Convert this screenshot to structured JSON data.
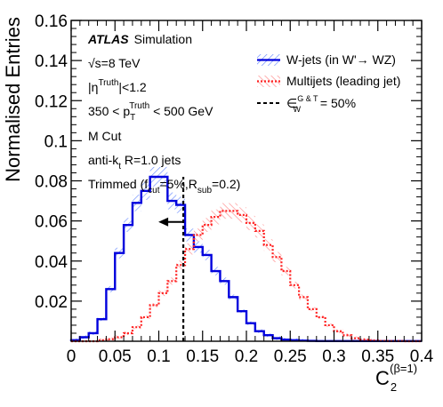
{
  "chart_data": {
    "type": "histogram",
    "title": "",
    "xlabel": "C_2^(β=1)",
    "xlabel_main": "C",
    "xlabel_sub": "2",
    "xlabel_sup": "(β=1)",
    "ylabel": "Normalised Entries",
    "xlim": [
      0,
      0.4
    ],
    "ylim": [
      0,
      0.16
    ],
    "x_ticks": [
      0,
      0.05,
      0.1,
      0.15,
      0.2,
      0.25,
      0.3,
      0.35,
      0.4
    ],
    "x_tick_labels": [
      "0",
      "0.05",
      "0.1",
      "0.15",
      "0.2",
      "0.25",
      "0.3",
      "0.35",
      "0.4"
    ],
    "y_ticks": [
      0.02,
      0.04,
      0.06,
      0.08,
      0.1,
      0.12,
      0.14,
      0.16
    ],
    "y_tick_labels": [
      "0.02",
      "0.04",
      "0.06",
      "0.08",
      "0.1",
      "0.12",
      "0.14",
      "0.16"
    ],
    "bin_width": 0.01,
    "bin_edges_start": 0,
    "series": [
      {
        "name": "W-jets (in W'→ WZ)",
        "color": "#0000dd",
        "style": "solid",
        "values": [
          0.0005,
          0.002,
          0.004,
          0.011,
          0.026,
          0.044,
          0.058,
          0.069,
          0.075,
          0.082,
          0.082,
          0.07,
          0.068,
          0.053,
          0.047,
          0.043,
          0.035,
          0.03,
          0.022,
          0.015,
          0.009,
          0.005,
          0.003,
          0.0015,
          0.0008,
          0.0005,
          0.0003,
          0.0002,
          0.0001,
          0.0001,
          0.0001,
          0.0001,
          0.0001,
          0.0001,
          0.0001,
          0.0001,
          0.0001,
          0.0001,
          0.0001,
          0.0001
        ]
      },
      {
        "name": "Multijets (leading jet)",
        "color": "#ff2222",
        "style": "dotted",
        "values": [
          0,
          0,
          0,
          0.0005,
          0.001,
          0.002,
          0.004,
          0.007,
          0.012,
          0.018,
          0.024,
          0.03,
          0.038,
          0.046,
          0.053,
          0.058,
          0.062,
          0.065,
          0.065,
          0.063,
          0.059,
          0.055,
          0.048,
          0.042,
          0.035,
          0.028,
          0.022,
          0.016,
          0.012,
          0.008,
          0.005,
          0.003,
          0.0015,
          0.0008,
          0.0004,
          0.0002,
          0.0001,
          0.0001,
          0,
          0
        ]
      }
    ],
    "cut_line": {
      "x": 0.128,
      "ymax": 0.082,
      "label_prefix": "∈",
      "label_sup": "G & T",
      "label_sub": "W",
      "label_suffix": " = 50%",
      "arrow_direction": "left"
    },
    "legend_position": "top-right",
    "grid": false
  },
  "annotations": {
    "experiment": "ATLAS",
    "experiment_suffix": "Simulation",
    "energy": "√s=8 TeV",
    "eta_cut": {
      "prefix": "|η",
      "sup": "Truth",
      "suffix": "|<1.2"
    },
    "pt_cut": {
      "prefix": "350 < p",
      "sub": "T",
      "sup": "Truth",
      "suffix": " < 500 GeV"
    },
    "mass_cut": "M Cut",
    "jet_algo": {
      "prefix": "anti-k",
      "sub": "t",
      "suffix": " R=1.0 jets"
    },
    "trimming": {
      "prefix": "Trimmed (f",
      "sub1": "cut",
      "mid": "=5%,R",
      "sub2": "sub",
      "suffix": "=0.2)"
    }
  }
}
